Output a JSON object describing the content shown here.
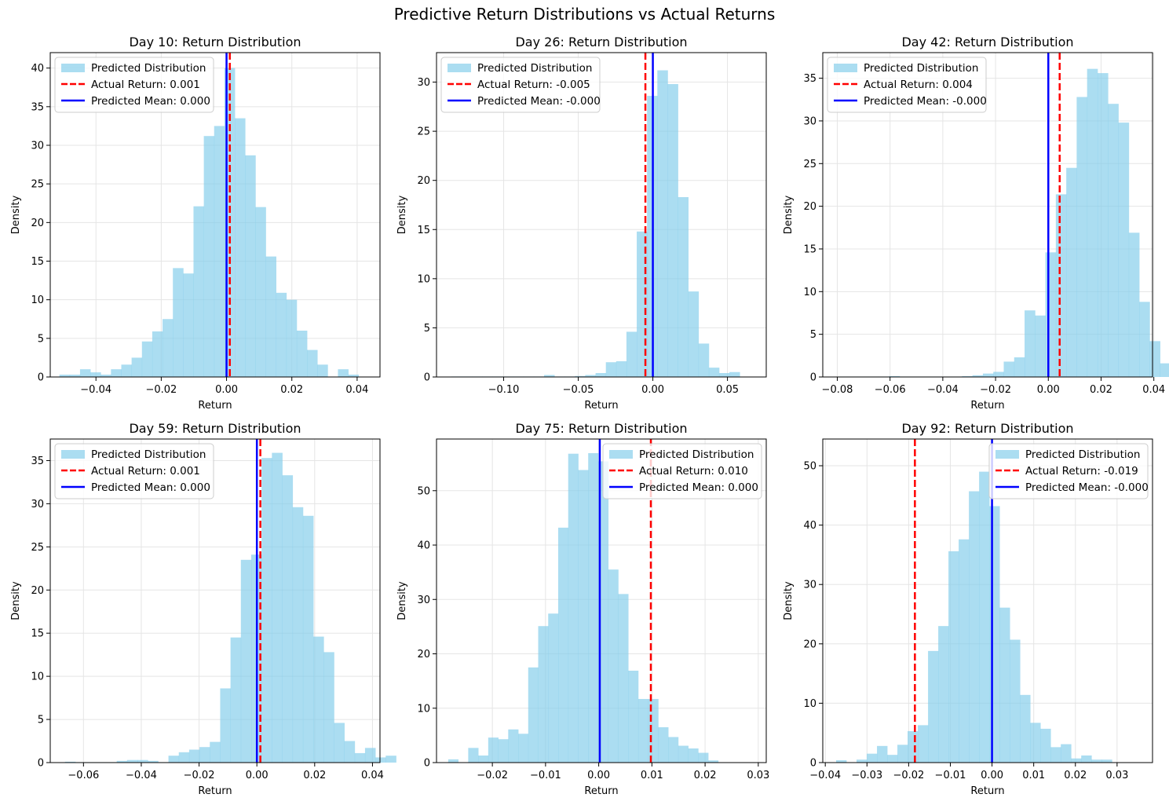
{
  "figure": {
    "suptitle": "Predictive Return Distributions vs Actual Returns",
    "colors": {
      "hist": "#87ceeb",
      "actual": "#ff0000",
      "mean": "#0000ff",
      "grid": "#e5e5e5"
    }
  },
  "chart_data": [
    {
      "type": "bar",
      "title": "Day 10: Return Distribution",
      "xlabel": "Return",
      "ylabel": "Density",
      "xlim": [
        -0.054,
        0.047
      ],
      "ylim": [
        0,
        42
      ],
      "xticks": [
        -0.04,
        -0.02,
        0.0,
        0.02,
        0.04
      ],
      "xtick_labels": [
        "−0.04",
        "−0.02",
        "0.00",
        "0.02",
        "0.04"
      ],
      "yticks": [
        0,
        5,
        10,
        15,
        20,
        25,
        30,
        35,
        40
      ],
      "bins_start": -0.0512,
      "bin_width": 0.00316,
      "values": [
        0.3,
        0.3,
        1.0,
        0.6,
        0.3,
        1.0,
        1.6,
        2.5,
        4.6,
        5.9,
        7.5,
        14.1,
        13.4,
        22.1,
        31.2,
        32.5,
        40.0,
        33.5,
        28.7,
        22.0,
        15.6,
        10.9,
        10.0,
        6.0,
        3.5,
        1.6,
        0.0,
        1.0,
        0.3
      ],
      "series": [
        {
          "name": "Predicted Distribution",
          "kind": "histogram"
        },
        {
          "name": "Actual Return: 0.001",
          "kind": "vline",
          "x": 0.001,
          "style": "dashed"
        },
        {
          "name": "Predicted Mean: 0.000",
          "kind": "vline",
          "x": 0.0,
          "style": "solid"
        }
      ],
      "legend": "upper-left"
    },
    {
      "type": "bar",
      "title": "Day 26: Return Distribution",
      "xlabel": "Return",
      "ylabel": "Density",
      "xlim": [
        -0.145,
        0.076
      ],
      "ylim": [
        0,
        33
      ],
      "xticks": [
        -0.1,
        -0.05,
        0.0,
        0.05
      ],
      "xtick_labels": [
        "−0.10",
        "−0.05",
        "0.00",
        "0.05"
      ],
      "yticks": [
        0,
        5,
        10,
        15,
        20,
        25,
        30
      ],
      "bins_start": -0.135,
      "bin_width": 0.0069,
      "values": [
        0.05,
        0.05,
        0.05,
        0.05,
        0.05,
        0.05,
        0.05,
        0.05,
        0.05,
        0.2,
        0.05,
        0.05,
        0.1,
        0.2,
        0.4,
        1.5,
        1.6,
        4.6,
        14.8,
        28.6,
        31.2,
        29.8,
        18.3,
        8.7,
        3.4,
        0.95,
        0.4,
        0.5
      ],
      "series": [
        {
          "name": "Predicted Distribution",
          "kind": "histogram"
        },
        {
          "name": "Actual Return: -0.005",
          "kind": "vline",
          "x": -0.005,
          "style": "dashed"
        },
        {
          "name": "Predicted Mean: -0.000",
          "kind": "vline",
          "x": 0.0,
          "style": "solid"
        }
      ],
      "legend": "upper-left"
    },
    {
      "type": "bar",
      "title": "Day 42: Return Distribution",
      "xlabel": "Return",
      "ylabel": "Density",
      "xlim": [
        -0.0855,
        0.0395
      ],
      "ylim": [
        0,
        38
      ],
      "xticks": [
        -0.08,
        -0.06,
        -0.04,
        -0.02,
        0.0,
        0.02,
        0.04
      ],
      "xtick_labels": [
        "−0.08",
        "−0.06",
        "−0.04",
        "−0.02",
        "0.00",
        "0.02",
        "0.04"
      ],
      "yticks": [
        0,
        5,
        10,
        15,
        20,
        25,
        30,
        35
      ],
      "bins_start": -0.0801,
      "bin_width": 0.00395,
      "values": [
        0.05,
        0.05,
        0.05,
        0.05,
        0.05,
        0.1,
        0.05,
        0.05,
        0.05,
        0.05,
        0.05,
        0.05,
        0.1,
        0.2,
        0.4,
        0.6,
        1.8,
        2.3,
        7.8,
        7.2,
        14.6,
        21.4,
        24.5,
        32.8,
        36.1,
        35.6,
        32.0,
        29.8,
        16.9,
        8.8,
        4.2,
        1.6,
        1.8,
        1.3
      ],
      "series": [
        {
          "name": "Predicted Distribution",
          "kind": "histogram"
        },
        {
          "name": "Actual Return: 0.004",
          "kind": "vline",
          "x": 0.0043,
          "style": "dashed"
        },
        {
          "name": "Predicted Mean: -0.000",
          "kind": "vline",
          "x": 0.0,
          "style": "solid"
        }
      ],
      "legend": "upper-left"
    },
    {
      "type": "bar",
      "title": "Day 59: Return Distribution",
      "xlabel": "Return",
      "ylabel": "Density",
      "xlim": [
        -0.0715,
        0.0426
      ],
      "ylim": [
        0,
        37.5
      ],
      "xticks": [
        -0.06,
        -0.04,
        -0.02,
        0.0,
        0.02,
        0.04
      ],
      "xtick_labels": [
        "−0.06",
        "−0.04",
        "−0.02",
        "0.00",
        "0.02",
        "0.04"
      ],
      "yticks": [
        0,
        5,
        10,
        15,
        20,
        25,
        30,
        35
      ],
      "bins_start": -0.0664,
      "bin_width": 0.00358,
      "values": [
        0.1,
        0.05,
        0.05,
        0.05,
        0.05,
        0.2,
        0.3,
        0.3,
        0.2,
        0.05,
        0.8,
        1.2,
        1.5,
        1.8,
        2.4,
        8.6,
        14.5,
        23.5,
        24.1,
        35.3,
        35.9,
        33.3,
        29.6,
        28.6,
        14.6,
        12.8,
        4.6,
        2.5,
        1.1,
        1.7,
        0.6,
        0.8
      ],
      "series": [
        {
          "name": "Predicted Distribution",
          "kind": "histogram"
        },
        {
          "name": "Actual Return: 0.001",
          "kind": "vline",
          "x": 0.0012,
          "style": "dashed"
        },
        {
          "name": "Predicted Mean: 0.000",
          "kind": "vline",
          "x": 0.0,
          "style": "solid"
        }
      ],
      "legend": "upper-left"
    },
    {
      "type": "bar",
      "title": "Day 75: Return Distribution",
      "xlabel": "Return",
      "ylabel": "Density",
      "xlim": [
        -0.0305,
        0.0315
      ],
      "ylim": [
        0,
        59.5
      ],
      "xticks": [
        -0.02,
        -0.01,
        0.0,
        0.01,
        0.02,
        0.03
      ],
      "xtick_labels": [
        "−0.02",
        "−0.01",
        "0.00",
        "0.01",
        "0.02",
        "0.03"
      ],
      "yticks": [
        0,
        10,
        20,
        30,
        40,
        50
      ],
      "bins_start": -0.0283,
      "bin_width": 0.00188,
      "values": [
        0.6,
        0.0,
        2.7,
        1.3,
        4.6,
        4.3,
        6.1,
        5.3,
        17.5,
        25.1,
        27.4,
        43.2,
        56.8,
        53.8,
        56.9,
        55.4,
        35.5,
        31.0,
        16.9,
        11.7,
        11.7,
        6.5,
        4.7,
        3.1,
        2.6,
        1.8,
        0.4
      ],
      "series": [
        {
          "name": "Predicted Distribution",
          "kind": "histogram"
        },
        {
          "name": "Actual Return: 0.010",
          "kind": "vline",
          "x": 0.0098,
          "style": "dashed"
        },
        {
          "name": "Predicted Mean: 0.000",
          "kind": "vline",
          "x": 0.0002,
          "style": "solid"
        }
      ],
      "legend": "upper-right"
    },
    {
      "type": "bar",
      "title": "Day 92: Return Distribution",
      "xlabel": "Return",
      "ylabel": "Density",
      "xlim": [
        -0.0406,
        0.0385
      ],
      "ylim": [
        0,
        54.5
      ],
      "xticks": [
        -0.04,
        -0.03,
        -0.02,
        -0.01,
        0.0,
        0.01,
        0.02,
        0.03
      ],
      "xtick_labels": [
        "−0.04",
        "−0.03",
        "−0.02",
        "−0.01",
        "0.00",
        "0.01",
        "0.02",
        "0.03"
      ],
      "yticks": [
        0,
        10,
        20,
        30,
        40,
        50
      ],
      "bins_start": -0.0374,
      "bin_width": 0.00245,
      "values": [
        0.4,
        0.0,
        0.5,
        1.5,
        2.8,
        1.3,
        3.0,
        5.3,
        6.3,
        18.8,
        23.0,
        35.6,
        37.6,
        45.7,
        49.0,
        43.2,
        26.1,
        20.7,
        11.4,
        6.7,
        5.7,
        2.6,
        3.1,
        0.7,
        1.2,
        0.5,
        0.5
      ],
      "series": [
        {
          "name": "Predicted Distribution",
          "kind": "histogram"
        },
        {
          "name": "Actual Return: -0.019",
          "kind": "vline",
          "x": -0.0185,
          "style": "dashed"
        },
        {
          "name": "Predicted Mean: -0.000",
          "kind": "vline",
          "x": 0.0,
          "style": "solid"
        }
      ],
      "legend": "upper-right"
    }
  ]
}
